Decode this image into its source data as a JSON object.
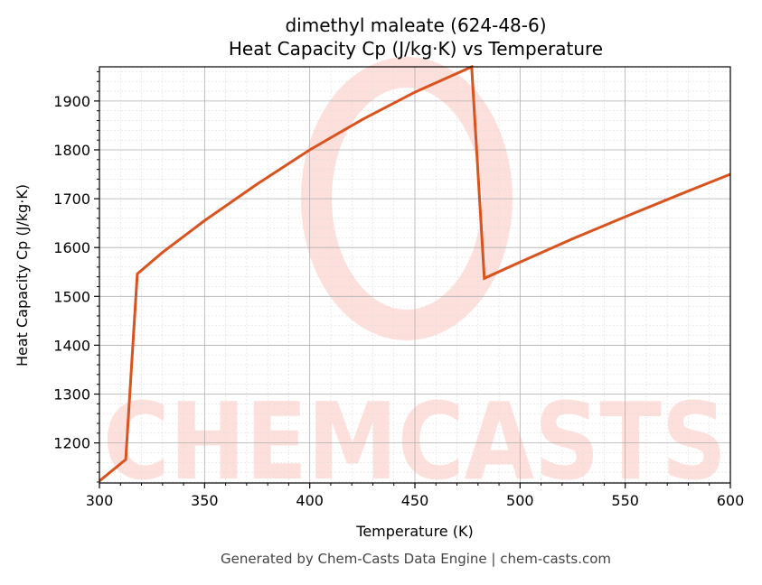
{
  "title_line1": "dimethyl maleate (624-48-6)",
  "title_line2": "Heat Capacity Cp (J/kg·K) vs Temperature",
  "footer": "Generated by Chem-Casts Data Engine | chem-casts.com",
  "watermark": "CHEMCASTS",
  "colors": {
    "line": "#d9531e",
    "watermark": "#fde0dc",
    "grid_major": "#b0b0b0",
    "grid_minor": "#dddddd"
  },
  "chart_data": {
    "type": "line",
    "title": "dimethyl maleate (624-48-6)\nHeat Capacity Cp (J/kg·K) vs Temperature",
    "xlabel": "Temperature (K)",
    "ylabel": "Heat Capacity Cp (J/kg·K)",
    "xlim": [
      300,
      600
    ],
    "ylim": [
      1118,
      1970
    ],
    "xticks": [
      300,
      350,
      400,
      450,
      500,
      550,
      600
    ],
    "yticks": [
      1200,
      1300,
      1400,
      1500,
      1600,
      1700,
      1800,
      1900
    ],
    "grid": true,
    "legend": null,
    "series": [
      {
        "name": "Cp",
        "x": [
          300,
          312.5,
          318,
          330,
          350,
          375,
          400,
          425,
          450,
          477,
          483,
          500,
          525,
          550,
          575,
          600
        ],
        "y": [
          1122,
          1166,
          1546,
          1590,
          1655,
          1730,
          1800,
          1862,
          1918,
          1970,
          1537,
          1570,
          1618,
          1663,
          1707,
          1750
        ]
      }
    ]
  }
}
